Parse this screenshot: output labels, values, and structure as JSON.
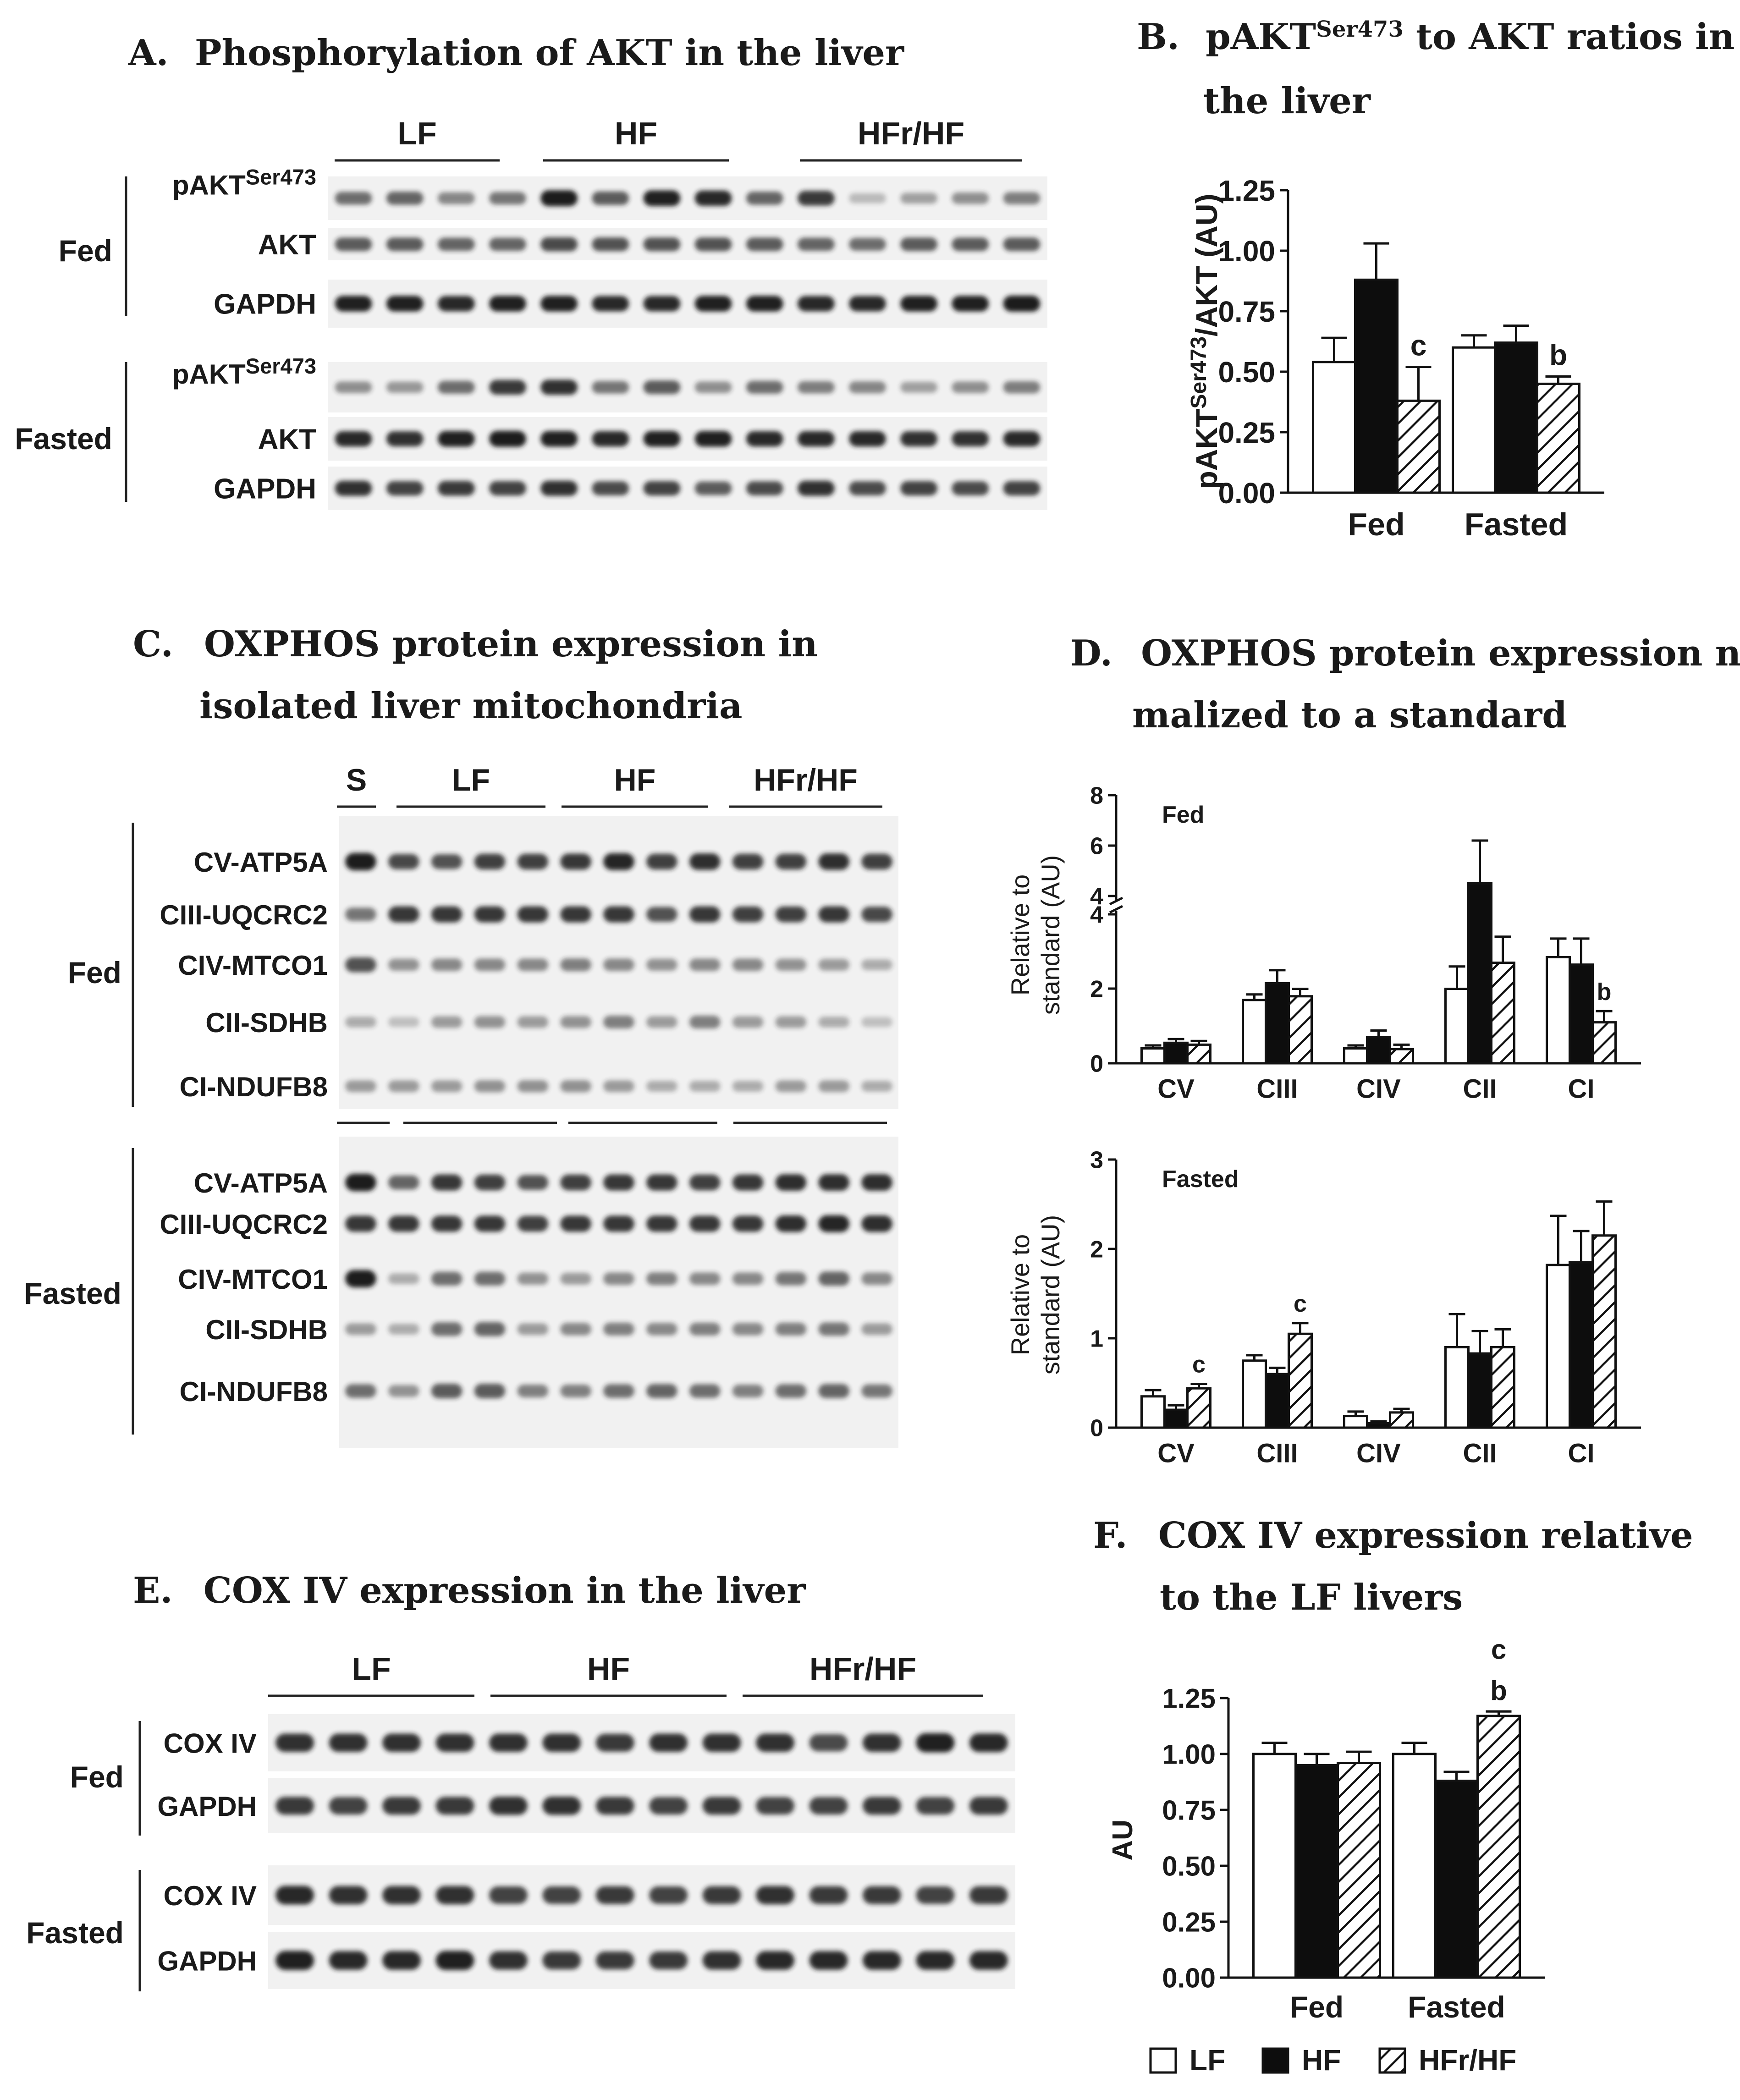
{
  "panels": {
    "A": {
      "letter": "A.",
      "title": "Phosphorylation of AKT in the liver"
    },
    "B": {
      "letter": "B.",
      "title_pre": "pAKT",
      "title_sup": "Ser473",
      "title_post": " to AKT ratios in",
      "title_line2": "the liver"
    },
    "C": {
      "letter": "C.",
      "title_line1": "OXPHOS protein expression in",
      "title_line2": "isolated liver mitochondria"
    },
    "D": {
      "letter": "D.",
      "title_line1": "OXPHOS protein expression nor-",
      "title_line2": "malized to a standard"
    },
    "E": {
      "letter": "E.",
      "title": "COX IV expression in the liver"
    },
    "F": {
      "letter": "F.",
      "title_line1": "COX IV expression relative",
      "title_line2": "to the LF livers"
    }
  },
  "blot_A": {
    "groups": [
      "LF",
      "HF",
      "HFr/HF"
    ],
    "conditions": [
      "Fed",
      "Fasted"
    ],
    "rows": [
      {
        "label": "pAKT",
        "sup": "Ser473"
      },
      {
        "label": "AKT"
      },
      {
        "label": "GAPDH"
      },
      {
        "label": "pAKT",
        "sup": "Ser473"
      },
      {
        "label": "AKT"
      },
      {
        "label": "GAPDH"
      }
    ]
  },
  "blot_C": {
    "groups": [
      "S",
      "LF",
      "HF",
      "HFr/HF"
    ],
    "conditions": [
      "Fed",
      "Fasted"
    ],
    "rows_fed": [
      "CV-ATP5A",
      "CIII-UQCRC2",
      "CIV-MTCO1",
      "CII-SDHB",
      "CI-NDUFB8"
    ],
    "rows_fasted": [
      "CV-ATP5A",
      "CIII-UQCRC2",
      "CIV-MTCO1",
      "CII-SDHB",
      "CI-NDUFB8"
    ]
  },
  "blot_E": {
    "groups": [
      "LF",
      "HF",
      "HFr/HF"
    ],
    "conditions": [
      "Fed",
      "Fasted"
    ],
    "rows": [
      "COX IV",
      "GAPDH",
      "COX IV",
      "GAPDH"
    ]
  },
  "chart_data": [
    {
      "id": "B",
      "type": "bar",
      "categories": [
        "Fed",
        "Fasted"
      ],
      "series": [
        {
          "name": "LF",
          "values": [
            0.54,
            0.6
          ],
          "errors": [
            0.1,
            0.05
          ]
        },
        {
          "name": "HF",
          "values": [
            0.88,
            0.62
          ],
          "errors": [
            0.15,
            0.07
          ]
        },
        {
          "name": "HFr/HF",
          "values": [
            0.38,
            0.45
          ],
          "errors": [
            0.14,
            0.03
          ]
        }
      ],
      "annotations": [
        {
          "category": "Fed",
          "series": "HFr/HF",
          "text": "c"
        },
        {
          "category": "Fasted",
          "series": "HFr/HF",
          "text": "b"
        }
      ],
      "ylabel_pre": "pAKT",
      "ylabel_sup": "Ser473",
      "ylabel_post": "/AKT (AU)",
      "ylim": [
        0,
        1.25
      ],
      "yticks": [
        "0.00",
        "0.25",
        "0.50",
        "0.75",
        "1.00",
        "1.25"
      ]
    },
    {
      "id": "D-Fed",
      "type": "bar",
      "title": "Fed",
      "categories": [
        "CV",
        "CIII",
        "CIV",
        "CII",
        "CI"
      ],
      "series": [
        {
          "name": "LF",
          "values": [
            0.4,
            1.7,
            0.4,
            2.0,
            2.85
          ],
          "errors": [
            0.08,
            0.15,
            0.08,
            0.6,
            0.5
          ]
        },
        {
          "name": "HF",
          "values": [
            0.55,
            2.15,
            0.7,
            4.5,
            2.65
          ],
          "errors": [
            0.1,
            0.35,
            0.18,
            1.7,
            0.7
          ]
        },
        {
          "name": "HFr/HF",
          "values": [
            0.5,
            1.8,
            0.38,
            2.7,
            1.1
          ],
          "errors": [
            0.1,
            0.2,
            0.12,
            0.7,
            0.3
          ]
        }
      ],
      "annotations": [
        {
          "category": "CI",
          "series": "HFr/HF",
          "text": "b"
        }
      ],
      "ylabel_line1": "Relative to",
      "ylabel_line2": "standard (AU)",
      "axis_break": [
        4,
        4
      ],
      "ylim": [
        0,
        8
      ],
      "yticks": [
        "0",
        "2",
        "4",
        "4",
        "6",
        "8"
      ]
    },
    {
      "id": "D-Fasted",
      "type": "bar",
      "title": "Fasted",
      "categories": [
        "CV",
        "CIII",
        "CIV",
        "CII",
        "CI"
      ],
      "series": [
        {
          "name": "LF",
          "values": [
            0.35,
            0.75,
            0.13,
            0.9,
            1.82
          ],
          "errors": [
            0.07,
            0.06,
            0.05,
            0.37,
            0.55
          ]
        },
        {
          "name": "HF",
          "values": [
            0.2,
            0.6,
            0.05,
            0.83,
            1.85
          ],
          "errors": [
            0.05,
            0.07,
            0.02,
            0.25,
            0.35
          ]
        },
        {
          "name": "HFr/HF",
          "values": [
            0.44,
            1.05,
            0.17,
            0.9,
            2.15
          ],
          "errors": [
            0.05,
            0.12,
            0.04,
            0.2,
            0.38
          ]
        }
      ],
      "annotations": [
        {
          "category": "CV",
          "series": "HFr/HF",
          "text": "c"
        },
        {
          "category": "CIII",
          "series": "HFr/HF",
          "text": "c"
        }
      ],
      "ylabel_line1": "Relative to",
      "ylabel_line2": "standard (AU)",
      "ylim": [
        0,
        3
      ],
      "yticks": [
        "0",
        "1",
        "2",
        "3"
      ]
    },
    {
      "id": "F",
      "type": "bar",
      "categories": [
        "Fed",
        "Fasted"
      ],
      "series": [
        {
          "name": "LF",
          "values": [
            1.0,
            1.0
          ],
          "errors": [
            0.05,
            0.05
          ]
        },
        {
          "name": "HF",
          "values": [
            0.95,
            0.88
          ],
          "errors": [
            0.05,
            0.04
          ]
        },
        {
          "name": "HFr/HF",
          "values": [
            0.96,
            1.17
          ],
          "errors": [
            0.05,
            0.02
          ]
        }
      ],
      "annotations": [
        {
          "category": "Fasted",
          "series": "HFr/HF",
          "text": "b"
        },
        {
          "category": "Fasted",
          "series": "HFr/HF",
          "text": "c"
        }
      ],
      "ylabel": "AU",
      "ylim": [
        0,
        1.25
      ],
      "yticks": [
        "0.00",
        "0.25",
        "0.50",
        "0.75",
        "1.00",
        "1.25"
      ]
    }
  ],
  "legend": {
    "items": [
      {
        "label": "LF",
        "style": "white"
      },
      {
        "label": "HF",
        "style": "black"
      },
      {
        "label": "HFr/HF",
        "style": "hatched"
      }
    ]
  },
  "colors": {
    "bar_white": "#ffffff",
    "bar_black": "#0d0d0d",
    "blot_bg": "#f1f1f1",
    "band": "#1c1c1c",
    "text": "#1a1a1a"
  }
}
